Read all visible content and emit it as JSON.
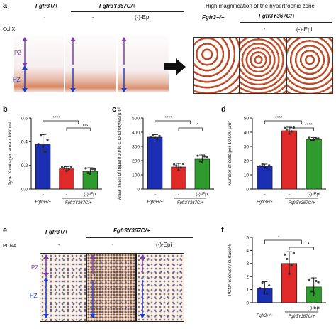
{
  "panel_a": {
    "letter": "a",
    "genotype_wt": "Fgfr3+/+",
    "genotype_mut": "Fgfr3Y367C/+",
    "treatment_none": "-",
    "treatment_epi": "(-)-Epi",
    "stain": "Col X",
    "zone_pz": "PZ",
    "zone_hz": "HZ",
    "magnification_title": "High magnification of the hypertrophic zone"
  },
  "chart_data": [
    {
      "panel": "b",
      "type": "bar",
      "categories": [
        "-",
        "-",
        "(-)-Epi"
      ],
      "group_labels": [
        "Fgfr3+/+",
        "Fgfr3Y367C/+"
      ],
      "values": [
        0.38,
        0.17,
        0.15
      ],
      "errors": [
        0.08,
        0.02,
        0.03
      ],
      "colors": [
        "#1a2fb3",
        "#e02a2a",
        "#2f9b2f"
      ],
      "ylabel": "Type X collagen area ×10⁶/µm²",
      "ylim": [
        0,
        0.6
      ],
      "yticks": [
        "0.0",
        "0.2",
        "0.4",
        "0.6"
      ],
      "significance": [
        "****",
        "ns"
      ]
    },
    {
      "panel": "c",
      "type": "bar",
      "categories": [
        "-",
        "-",
        "(-)-Epi"
      ],
      "group_labels": [
        "Fgfr3+/+",
        "Fgfr3Y367C/+"
      ],
      "values": [
        365,
        155,
        210
      ],
      "errors": [
        18,
        25,
        30
      ],
      "colors": [
        "#1a2fb3",
        "#e02a2a",
        "#2f9b2f"
      ],
      "ylabel": "Area mean of hypertrophic chondrocytes/µm²",
      "ylim": [
        0,
        500
      ],
      "yticks": [
        "0",
        "100",
        "200",
        "300",
        "400",
        "500"
      ],
      "significance": [
        "****",
        "*"
      ]
    },
    {
      "panel": "d",
      "type": "bar",
      "categories": [
        "-",
        "-",
        "(-)-Epi"
      ],
      "group_labels": [
        "Fgfr3+/+",
        "Fgfr3Y367C/+"
      ],
      "values": [
        16,
        41,
        35
      ],
      "errors": [
        1.5,
        2.5,
        1.2
      ],
      "colors": [
        "#1a2fb3",
        "#e02a2a",
        "#2f9b2f"
      ],
      "ylabel": "Number of cells per 10 000 µm²",
      "ylim": [
        0,
        50
      ],
      "yticks": [
        "0",
        "10",
        "20",
        "30",
        "40",
        "50"
      ],
      "significance": [
        "****",
        "****"
      ]
    },
    {
      "panel": "f",
      "type": "bar",
      "categories": [
        "-",
        "-",
        "(-)-Epi"
      ],
      "group_labels": [
        "Fgfr3+/+",
        "Fgfr3Y367C/+"
      ],
      "values": [
        1.1,
        3.0,
        1.2
      ],
      "errors": [
        0.5,
        0.9,
        0.7
      ],
      "colors": [
        "#1a2fb3",
        "#e02a2a",
        "#2f9b2f"
      ],
      "ylabel": "PCNA recovery surface%",
      "ylim": [
        0,
        5
      ],
      "yticks": [
        "0",
        "1",
        "2",
        "3",
        "4",
        "5"
      ],
      "significance": [
        "*",
        "*"
      ]
    }
  ],
  "panel_letters": {
    "b": "b",
    "c": "c",
    "d": "d",
    "e": "e",
    "f": "f"
  },
  "panel_e": {
    "genotype_wt": "Fgfr3+/+",
    "genotype_mut": "Fgfr3Y367C/+",
    "treatment_none": "-",
    "treatment_epi": "(-)-Epi",
    "stain": "PCNA",
    "zone_pz": "PZ",
    "zone_hz": "HZ"
  }
}
